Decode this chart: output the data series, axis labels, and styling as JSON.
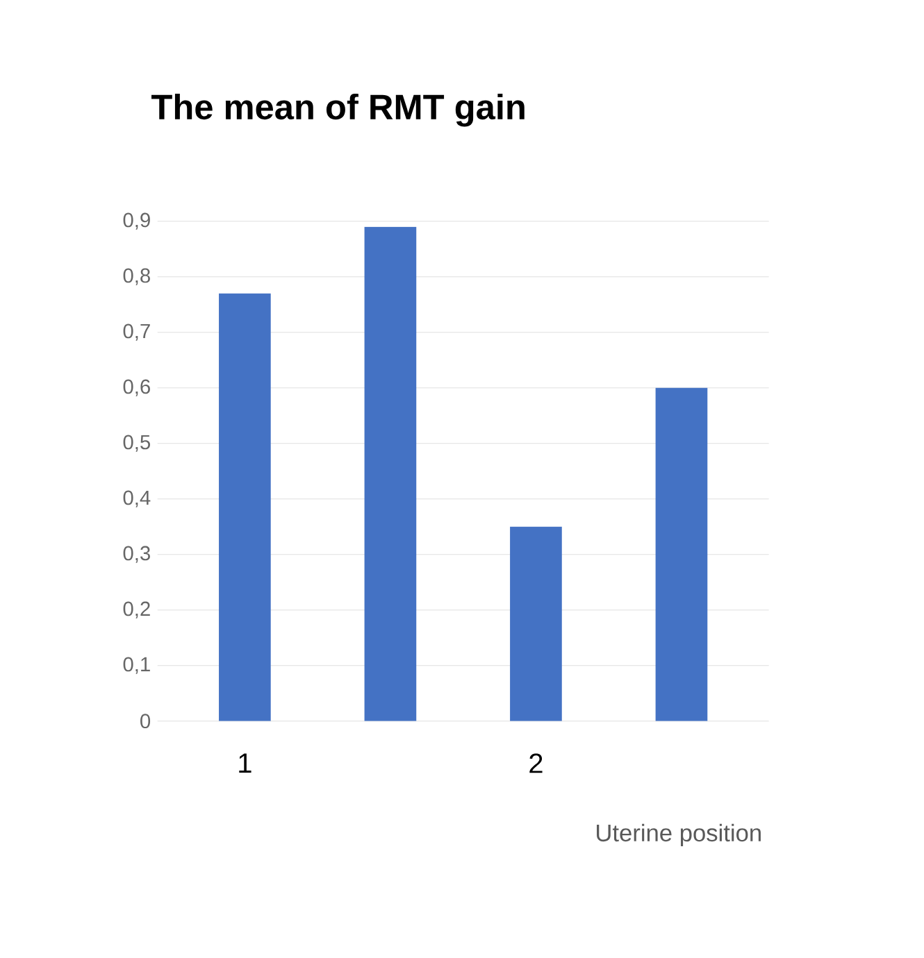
{
  "chart_data": {
    "type": "bar",
    "title": "The mean of RMT gain",
    "xlabel": "Uterine position",
    "categories": [
      "1",
      null,
      "2",
      null
    ],
    "values": [
      0.77,
      0.89,
      0.35,
      0.6
    ],
    "color": "#4472c4",
    "ylim": [
      0,
      0.9
    ],
    "yticks": [
      0,
      {
        "value": 0.1,
        "label": "0,1"
      },
      {
        "value": 0.2,
        "label": "0,2"
      },
      {
        "value": 0.3,
        "label": "0,3"
      },
      {
        "value": 0.4,
        "label": "0,4"
      },
      {
        "value": 0.5,
        "label": "0,5"
      },
      {
        "value": 0.6,
        "label": "0,6"
      },
      {
        "value": 0.7,
        "label": "0,7"
      },
      {
        "value": 0.8,
        "label": "0,8"
      },
      {
        "value": 0.9,
        "label": "0,9"
      }
    ],
    "grid": "y"
  }
}
